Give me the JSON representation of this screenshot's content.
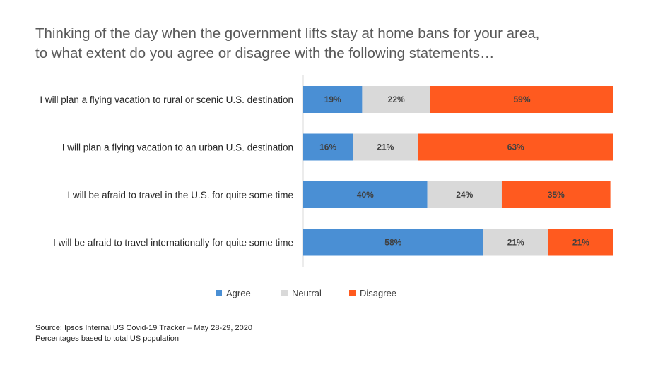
{
  "title_lines": [
    "Thinking of the day when the government lifts stay at home bans for your area,",
    "to what extent do you agree or disagree with the following statements…"
  ],
  "chart_data": {
    "type": "bar",
    "orientation": "horizontal",
    "stacked": true,
    "categories": [
      "I will plan a flying vacation to rural or scenic U.S. destination",
      "I will plan a flying vacation to an urban U.S. destination",
      "I will be afraid to travel in the U.S. for quite some time",
      "I will be afraid to travel internationally for quite some time"
    ],
    "series": [
      {
        "name": "Agree",
        "color": "#4a8fd4",
        "values": [
          19,
          16,
          40,
          58
        ]
      },
      {
        "name": "Neutral",
        "color": "#d9d9d9",
        "values": [
          22,
          21,
          24,
          21
        ]
      },
      {
        "name": "Disagree",
        "color": "#ff5a1f",
        "values": [
          59,
          63,
          35,
          21
        ]
      }
    ],
    "value_suffix": "%",
    "legend_position": "bottom",
    "grid": false
  },
  "footer": {
    "source": "Source: Ipsos Internal US Covid-19 Tracker – May 28-29, 2020",
    "note": "Percentages based to total US population"
  }
}
